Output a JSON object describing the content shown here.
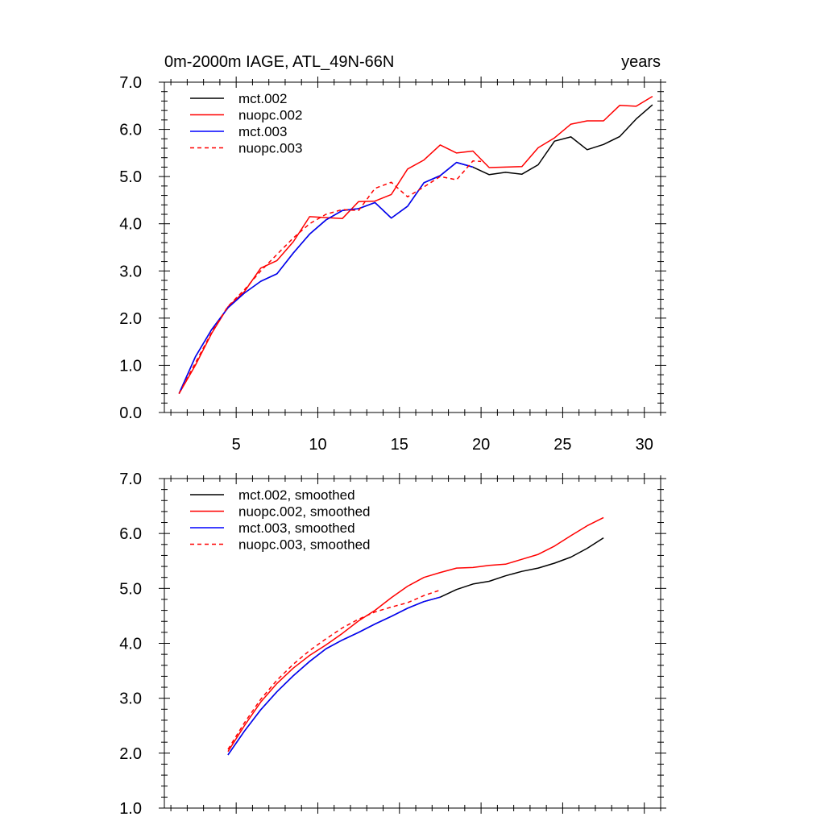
{
  "chart_data": [
    {
      "type": "line",
      "title_left": "0m-2000m IAGE, ATL_49N-66N",
      "title_right": "years",
      "xlabel": "",
      "ylabel": "",
      "xlim": [
        0.6,
        31.0
      ],
      "ylim": [
        0.0,
        7.0
      ],
      "grid": false,
      "legend_position": "top-left",
      "x_ticks": [
        5,
        10,
        15,
        20,
        25,
        30
      ],
      "y_ticks": [
        0.0,
        1.0,
        2.0,
        3.0,
        4.0,
        5.0,
        6.0,
        7.0
      ],
      "x_tick_labels": [
        "5",
        "10",
        "15",
        "20",
        "25",
        "30"
      ],
      "y_tick_labels": [
        "0.0",
        "1.0",
        "2.0",
        "3.0",
        "4.0",
        "5.0",
        "6.0",
        "7.0"
      ],
      "series": [
        {
          "name": "mct.002",
          "color": "#000000",
          "dash": "solid",
          "x": [
            1.5,
            2.5,
            3.5,
            4.5,
            5.5,
            6.5,
            7.5,
            8.5,
            9.5,
            10.5,
            11.5,
            12.5,
            13.5,
            14.5,
            15.5,
            16.5,
            17.5,
            18.5,
            19.5,
            20.5,
            21.5,
            22.5,
            23.5,
            24.5,
            25.5,
            26.5,
            27.5,
            28.5,
            29.5,
            30.5
          ],
          "y": [
            0.4,
            1.18,
            1.76,
            2.22,
            2.53,
            2.78,
            2.94,
            3.38,
            3.78,
            4.08,
            4.28,
            4.32,
            4.45,
            4.12,
            4.37,
            4.87,
            5.02,
            5.3,
            5.2,
            5.04,
            5.09,
            5.05,
            5.25,
            5.75,
            5.84,
            5.57,
            5.68,
            5.85,
            6.22,
            6.52
          ]
        },
        {
          "name": "nuopc.002",
          "color": "#ff0000",
          "dash": "solid",
          "x": [
            1.5,
            2.5,
            3.5,
            4.5,
            5.5,
            6.5,
            7.5,
            8.5,
            9.5,
            10.5,
            11.5,
            12.5,
            13.5,
            14.5,
            15.5,
            16.5,
            17.5,
            18.5,
            19.5,
            20.5,
            21.5,
            22.5,
            23.5,
            24.5,
            25.5,
            26.5,
            27.5,
            28.5,
            29.5,
            30.5
          ],
          "y": [
            0.4,
            1.0,
            1.68,
            2.24,
            2.56,
            3.06,
            3.22,
            3.62,
            4.15,
            4.13,
            4.11,
            4.47,
            4.48,
            4.62,
            5.16,
            5.35,
            5.67,
            5.5,
            5.54,
            5.19,
            5.2,
            5.21,
            5.61,
            5.82,
            6.11,
            6.18,
            6.18,
            6.51,
            6.49,
            6.7
          ]
        },
        {
          "name": "mct.003",
          "color": "#0000ff",
          "dash": "solid",
          "x": [
            1.5,
            2.5,
            3.5,
            4.5,
            5.5,
            6.5,
            7.5,
            8.5,
            9.5,
            10.5,
            11.5,
            12.5,
            13.5,
            14.5,
            15.5,
            16.5,
            17.5,
            18.5,
            19.5
          ],
          "y": [
            0.4,
            1.18,
            1.76,
            2.22,
            2.53,
            2.78,
            2.94,
            3.38,
            3.78,
            4.08,
            4.28,
            4.32,
            4.45,
            4.12,
            4.37,
            4.87,
            5.02,
            5.3,
            5.2
          ]
        },
        {
          "name": "nuopc.003",
          "color": "#ff0000",
          "dash": "dashed",
          "x": [
            1.5,
            2.5,
            3.5,
            4.5,
            5.5,
            6.5,
            7.5,
            8.5,
            9.5,
            10.5,
            11.5,
            12.5,
            13.5,
            14.5,
            15.5,
            16.5,
            17.5,
            18.5,
            19.5,
            20.0
          ],
          "y": [
            0.4,
            1.05,
            1.7,
            2.25,
            2.6,
            3.0,
            3.35,
            3.7,
            4.0,
            4.2,
            4.3,
            4.28,
            4.75,
            4.88,
            4.57,
            4.78,
            5.0,
            4.93,
            5.33,
            5.32
          ]
        }
      ]
    },
    {
      "type": "line",
      "title_left": "",
      "title_right": "",
      "xlabel": "",
      "ylabel": "",
      "xlim": [
        0.6,
        31.0
      ],
      "ylim": [
        1.0,
        7.0
      ],
      "grid": false,
      "legend_position": "top-left",
      "x_ticks": [
        5,
        10,
        15,
        20,
        25,
        30
      ],
      "y_ticks": [
        1.0,
        2.0,
        3.0,
        4.0,
        5.0,
        6.0,
        7.0
      ],
      "x_tick_labels": [],
      "y_tick_labels": [
        "1.0",
        "2.0",
        "3.0",
        "4.0",
        "5.0",
        "6.0",
        "7.0"
      ],
      "series": [
        {
          "name": "mct.002, smoothed",
          "color": "#000000",
          "dash": "solid",
          "x": [
            4.5,
            5.5,
            6.5,
            7.5,
            8.5,
            9.5,
            10.5,
            11.5,
            12.5,
            13.5,
            14.5,
            15.5,
            16.5,
            17.5,
            18.5,
            19.5,
            20.5,
            21.5,
            22.5,
            23.5,
            24.5,
            25.5,
            26.5,
            27.5
          ],
          "y": [
            1.97,
            2.4,
            2.79,
            3.12,
            3.41,
            3.67,
            3.9,
            4.06,
            4.2,
            4.35,
            4.49,
            4.64,
            4.76,
            4.84,
            4.98,
            5.08,
            5.13,
            5.23,
            5.31,
            5.37,
            5.46,
            5.57,
            5.73,
            5.92
          ]
        },
        {
          "name": "nuopc.002, smoothed",
          "color": "#ff0000",
          "dash": "solid",
          "x": [
            4.5,
            5.5,
            6.5,
            7.5,
            8.5,
            9.5,
            10.5,
            11.5,
            12.5,
            13.5,
            14.5,
            15.5,
            16.5,
            17.5,
            18.5,
            19.5,
            20.5,
            21.5,
            22.5,
            23.5,
            24.5,
            25.5,
            26.5,
            27.5
          ],
          "y": [
            2.03,
            2.5,
            2.93,
            3.27,
            3.55,
            3.78,
            3.97,
            4.18,
            4.41,
            4.6,
            4.83,
            5.04,
            5.2,
            5.29,
            5.37,
            5.38,
            5.42,
            5.44,
            5.53,
            5.62,
            5.77,
            5.96,
            6.14,
            6.29
          ]
        },
        {
          "name": "mct.003, smoothed",
          "color": "#0000ff",
          "dash": "solid",
          "x": [
            4.5,
            5.5,
            6.5,
            7.5,
            8.5,
            9.5,
            10.5,
            11.5,
            12.5,
            13.5,
            14.5,
            15.5,
            16.5,
            17.5
          ],
          "y": [
            1.97,
            2.4,
            2.79,
            3.12,
            3.41,
            3.67,
            3.9,
            4.06,
            4.2,
            4.35,
            4.49,
            4.64,
            4.76,
            4.84
          ]
        },
        {
          "name": "nuopc.003, smoothed",
          "color": "#ff0000",
          "dash": "dashed",
          "x": [
            4.5,
            5.5,
            6.5,
            7.5,
            8.5,
            9.5,
            10.5,
            11.5,
            12.5,
            13.5,
            14.5,
            15.5,
            16.5,
            17.5
          ],
          "y": [
            2.07,
            2.55,
            2.98,
            3.33,
            3.62,
            3.87,
            4.08,
            4.28,
            4.44,
            4.57,
            4.66,
            4.74,
            4.87,
            4.97
          ]
        }
      ]
    }
  ]
}
